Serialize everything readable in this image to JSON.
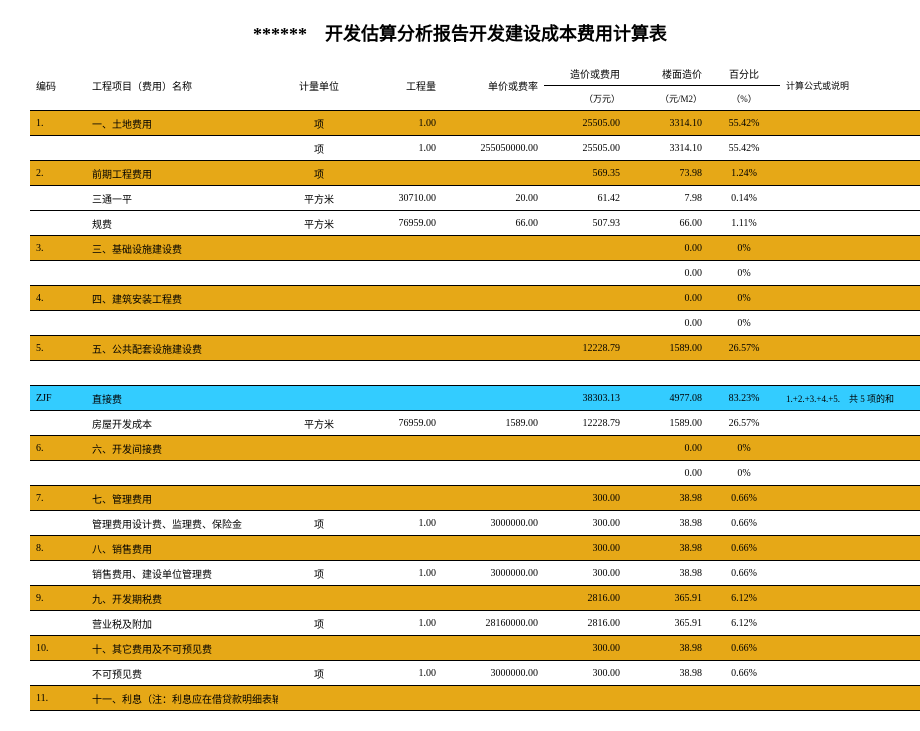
{
  "title": "******　开发估算分析报告开发建设成本费用计算表",
  "headers": {
    "code": "编码",
    "name": "工程项目（费用）名称",
    "unit": "计量单位",
    "qty": "工程量",
    "rate": "单价或费率",
    "cost": "造价或费用",
    "cost_sub": "（万元）",
    "floor": "楼面造价",
    "floor_sub": "（元/M2）",
    "pct": "百分比",
    "pct_sub": "（%）",
    "calc": "计算公式或说明"
  },
  "rows": [
    {
      "cls": "row-orange",
      "code": "1.",
      "name": "一、土地费用",
      "unit": "项",
      "qty": "1.00",
      "rate": "",
      "cost": "25505.00",
      "floor": "3314.10",
      "pct": "55.42%",
      "calc": ""
    },
    {
      "cls": "",
      "code": "",
      "name": "",
      "unit": "项",
      "qty": "1.00",
      "rate": "255050000.00",
      "cost": "25505.00",
      "floor": "3314.10",
      "pct": "55.42%",
      "calc": ""
    },
    {
      "cls": "row-orange",
      "code": "2.",
      "name": "前期工程费用",
      "unit": "项",
      "qty": "",
      "rate": "",
      "cost": "569.35",
      "floor": "73.98",
      "pct": "1.24%",
      "calc": ""
    },
    {
      "cls": "",
      "code": "",
      "name": "三通一平",
      "unit": "平方米",
      "qty": "30710.00",
      "rate": "20.00",
      "cost": "61.42",
      "floor": "7.98",
      "pct": "0.14%",
      "calc": ""
    },
    {
      "cls": "",
      "code": "",
      "name": "规费",
      "unit": "平方米",
      "qty": "76959.00",
      "rate": "66.00",
      "cost": "507.93",
      "floor": "66.00",
      "pct": "1.11%",
      "calc": ""
    },
    {
      "cls": "row-orange",
      "code": "3.",
      "name": "三、基础设施建设费",
      "unit": "",
      "qty": "",
      "rate": "",
      "cost": "",
      "floor": "0.00",
      "pct": "0%",
      "calc": ""
    },
    {
      "cls": "",
      "code": "",
      "name": "",
      "unit": "",
      "qty": "",
      "rate": "",
      "cost": "",
      "floor": "0.00",
      "pct": "0%",
      "calc": ""
    },
    {
      "cls": "row-orange",
      "code": "4.",
      "name": "四、建筑安装工程费",
      "unit": "",
      "qty": "",
      "rate": "",
      "cost": "",
      "floor": "0.00",
      "pct": "0%",
      "calc": ""
    },
    {
      "cls": "",
      "code": "",
      "name": "",
      "unit": "",
      "qty": "",
      "rate": "",
      "cost": "",
      "floor": "0.00",
      "pct": "0%",
      "calc": ""
    },
    {
      "cls": "row-orange",
      "code": "5.",
      "name": "五、公共配套设施建设费",
      "unit": "",
      "qty": "",
      "rate": "",
      "cost": "12228.79",
      "floor": "1589.00",
      "pct": "26.57%",
      "calc": ""
    },
    {
      "cls": "",
      "code": "",
      "name": "",
      "unit": "",
      "qty": "",
      "rate": "",
      "cost": "",
      "floor": "",
      "pct": "",
      "calc": ""
    },
    {
      "cls": "row-cyan",
      "code": "ZJF",
      "name": "直接费",
      "unit": "",
      "qty": "",
      "rate": "",
      "cost": "38303.13",
      "floor": "4977.08",
      "pct": "83.23%",
      "calc": "1.+2.+3.+4.+5.　共 5 项的和"
    },
    {
      "cls": "",
      "code": "",
      "name": "房屋开发成本",
      "unit": "平方米",
      "qty": "76959.00",
      "rate": "1589.00",
      "cost": "12228.79",
      "floor": "1589.00",
      "pct": "26.57%",
      "calc": ""
    },
    {
      "cls": "row-orange",
      "code": "6.",
      "name": "六、开发间接费",
      "unit": "",
      "qty": "",
      "rate": "",
      "cost": "",
      "floor": "0.00",
      "pct": "0%",
      "calc": ""
    },
    {
      "cls": "",
      "code": "",
      "name": "",
      "unit": "",
      "qty": "",
      "rate": "",
      "cost": "",
      "floor": "0.00",
      "pct": "0%",
      "calc": ""
    },
    {
      "cls": "row-orange",
      "code": "7.",
      "name": "七、管理费用",
      "unit": "",
      "qty": "",
      "rate": "",
      "cost": "300.00",
      "floor": "38.98",
      "pct": "0.66%",
      "calc": ""
    },
    {
      "cls": "",
      "code": "",
      "name": "管理费用设计费、监理费、保险金",
      "unit": "项",
      "qty": "1.00",
      "rate": "3000000.00",
      "cost": "300.00",
      "floor": "38.98",
      "pct": "0.66%",
      "calc": ""
    },
    {
      "cls": "row-orange",
      "code": "8.",
      "name": "八、销售费用",
      "unit": "",
      "qty": "",
      "rate": "",
      "cost": "300.00",
      "floor": "38.98",
      "pct": "0.66%",
      "calc": ""
    },
    {
      "cls": "",
      "code": "",
      "name": "销售费用、建设单位管理费",
      "unit": "项",
      "qty": "1.00",
      "rate": "3000000.00",
      "cost": "300.00",
      "floor": "38.98",
      "pct": "0.66%",
      "calc": ""
    },
    {
      "cls": "row-orange",
      "code": "9.",
      "name": "九、开发期税费",
      "unit": "",
      "qty": "",
      "rate": "",
      "cost": "2816.00",
      "floor": "365.91",
      "pct": "6.12%",
      "calc": ""
    },
    {
      "cls": "",
      "code": "",
      "name": "营业税及附加",
      "unit": "项",
      "qty": "1.00",
      "rate": "28160000.00",
      "cost": "2816.00",
      "floor": "365.91",
      "pct": "6.12%",
      "calc": ""
    },
    {
      "cls": "row-orange",
      "code": "10.",
      "name": "十、其它费用及不可预见费",
      "unit": "",
      "qty": "",
      "rate": "",
      "cost": "300.00",
      "floor": "38.98",
      "pct": "0.66%",
      "calc": ""
    },
    {
      "cls": "",
      "code": "",
      "name": "不可预见费",
      "unit": "项",
      "qty": "1.00",
      "rate": "3000000.00",
      "cost": "300.00",
      "floor": "38.98",
      "pct": "0.66%",
      "calc": ""
    },
    {
      "cls": "row-orange",
      "code": "11.",
      "name": "十一、利息（注：利息应在借贷款明细表输入计算）",
      "unit": "",
      "qty": "",
      "rate": "",
      "cost": "",
      "floor": "",
      "pct": "",
      "calc": ""
    }
  ]
}
